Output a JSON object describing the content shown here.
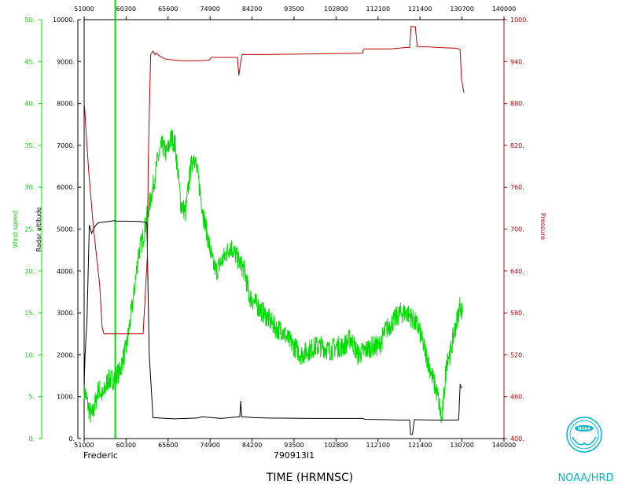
{
  "chart_data": {
    "type": "line",
    "storm_name": "Frederic",
    "flight_id": "790913I1",
    "xlabel": "TIME (HRMNSC)",
    "credit": "NOAA/HRD",
    "logo_text": "NOAA",
    "xlim": [
      51000,
      140000
    ],
    "x_ticks_bottom": [
      "51000",
      "60300",
      "65600",
      "74900",
      "84200",
      "93500",
      "102800",
      "112100",
      "121400",
      "130700",
      "140000"
    ],
    "x_ticks_top": [
      "51000",
      "60300",
      "65600",
      "74900",
      "84200",
      "93500",
      "102800",
      "112100",
      "121400",
      "130700",
      "140000"
    ],
    "axes": {
      "wind": {
        "label": "Wind speed",
        "color": "#00dd00",
        "ylim": [
          0,
          50
        ],
        "ticks": [
          "0.",
          "5.",
          "10.",
          "15.",
          "20.",
          "25.",
          "30.",
          "35.",
          "40.",
          "45.",
          "50."
        ]
      },
      "altitude": {
        "label": "Radar altitude",
        "color": "#000000",
        "ylim": [
          0,
          10000
        ],
        "ticks": [
          "0.",
          "1000.",
          "2000.",
          "3000.",
          "4000.",
          "5000.",
          "6000.",
          "7000.",
          "8000.",
          "9000.",
          "10000."
        ]
      },
      "pressure": {
        "label": "Pressure",
        "color": "#bb0000",
        "ylim": [
          400,
          1000
        ],
        "ticks": [
          "400.",
          "460.",
          "520.",
          "580.",
          "640.",
          "700.",
          "760.",
          "820.",
          "880.",
          "940.",
          "1000."
        ]
      }
    },
    "marker": {
      "x": 57600,
      "color": "#00dd00"
    },
    "series": [
      {
        "name": "Wind speed",
        "axis": "wind",
        "color": "#00dd00",
        "x": [
          51000,
          51800,
          52500,
          53300,
          54000,
          55000,
          56000,
          57000,
          58500,
          60000,
          61500,
          62500,
          63500,
          64500,
          65600,
          66500,
          67500,
          68500,
          69500,
          70300,
          71000,
          71500,
          72500,
          73500,
          74300,
          75200,
          76200,
          77200,
          78200,
          79000,
          80000,
          81000,
          82000,
          83000,
          84000,
          85000,
          86000,
          87500,
          89000,
          90500,
          92000,
          93000,
          94000,
          95500,
          97000,
          98500,
          100000,
          101500,
          103000,
          104500,
          106000,
          107500,
          109000,
          110500,
          112000,
          113500,
          115000,
          116500,
          118000,
          119500,
          121000,
          122000,
          123000,
          124000,
          125000,
          126000,
          126800,
          127400,
          128000,
          128600,
          129200,
          130000,
          130700,
          131200
        ],
        "y": [
          6,
          4,
          2.5,
          4,
          6,
          5,
          7,
          7,
          8,
          11,
          17,
          22,
          24,
          27,
          30,
          33,
          35,
          34,
          36,
          35,
          31,
          28,
          27,
          32,
          34,
          31,
          27,
          24,
          21,
          20,
          21,
          22,
          23,
          22,
          21,
          20,
          17,
          16,
          15,
          14,
          13,
          13,
          12,
          11,
          10,
          10.5,
          11,
          11,
          10.5,
          11,
          11,
          12,
          10,
          10.5,
          11,
          11,
          13,
          14,
          15,
          15,
          14,
          13,
          11,
          9,
          7,
          5,
          2,
          6,
          10,
          10,
          12,
          14,
          16,
          15
        ]
      },
      {
        "name": "Radar altitude",
        "axis": "altitude",
        "color": "#000000",
        "x": [
          51000,
          51200,
          51600,
          52100,
          52600,
          53000,
          53500,
          54000,
          56000,
          57400,
          57800,
          60000,
          63000,
          64300,
          64800,
          65600,
          70000,
          75000,
          76000,
          80000,
          84000,
          84200,
          84400,
          87000,
          90000,
          100000,
          110000,
          110600,
          115000,
          118000,
          120000,
          120200,
          120600,
          121000,
          125000,
          130000,
          130400,
          130700,
          131000
        ],
        "y": [
          1300,
          2000,
          2800,
          5100,
          4900,
          5000,
          5100,
          5150,
          5180,
          5200,
          5190,
          5190,
          5180,
          5150,
          2000,
          500,
          470,
          490,
          520,
          480,
          520,
          900,
          520,
          500,
          490,
          480,
          480,
          460,
          450,
          440,
          440,
          100,
          100,
          450,
          440,
          440,
          450,
          1300,
          1200
        ]
      },
      {
        "name": "Pressure",
        "axis": "pressure",
        "color": "#bb0000",
        "x": [
          51000,
          51150,
          51400,
          52000,
          53000,
          54300,
          54800,
          55200,
          57000,
          60000,
          63500,
          64400,
          64600,
          65100,
          65600,
          66000,
          66300,
          67000,
          68000,
          70000,
          72000,
          75000,
          77500,
          78000,
          82000,
          83500,
          83800,
          84200,
          84500,
          90000,
          100000,
          110000,
          110200,
          110500,
          116000,
          119000,
          120000,
          120300,
          121200,
          121600,
          122000,
          124000,
          126000,
          130000,
          130700,
          131000,
          131500
        ],
        "y": [
          880,
          870,
          840,
          780,
          700,
          620,
          560,
          550,
          550,
          550,
          550,
          660,
          800,
          950,
          955,
          950,
          952,
          948,
          944,
          942,
          941,
          941,
          942,
          946,
          946,
          946,
          920,
          940,
          950,
          950,
          951,
          952,
          957,
          958,
          958,
          960,
          960,
          990,
          990,
          962,
          961,
          961,
          960,
          959,
          957,
          915,
          895
        ]
      }
    ]
  }
}
